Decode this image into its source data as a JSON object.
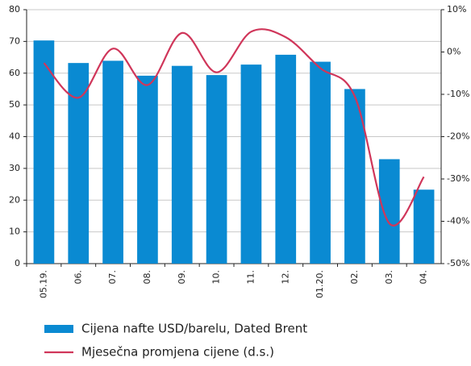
{
  "chart_data": {
    "type": "bar-line",
    "categories": [
      "05.19.",
      "06.",
      "07.",
      "08.",
      "09.",
      "10.",
      "11.",
      "12.",
      "01.20.",
      "02.",
      "03.",
      "04."
    ],
    "series": [
      {
        "name": "Cijena nafte USD/barelu,  Dated Brent",
        "type": "bar",
        "color": "#0a8ad2",
        "values": [
          70.3,
          63.2,
          63.9,
          59.2,
          62.3,
          59.4,
          62.7,
          65.8,
          63.6,
          55.0,
          32.9,
          23.3
        ]
      },
      {
        "name": "Mjesečna promjena cijene (d.s.)",
        "type": "line",
        "axis": "y2",
        "color": "#d0365a",
        "values": [
          -2.6,
          -10.8,
          0.8,
          -7.8,
          4.5,
          -4.8,
          4.8,
          3.5,
          -3.8,
          -10.5,
          -40.5,
          -29.5
        ]
      }
    ],
    "ylim": [
      0,
      80
    ],
    "yticks": [
      0,
      10,
      20,
      30,
      40,
      50,
      60,
      70,
      80
    ],
    "y2lim": [
      -50,
      10
    ],
    "y2ticks": [
      {
        "value": -50,
        "label": "-50%"
      },
      {
        "value": -40,
        "label": "-40%"
      },
      {
        "value": -30,
        "label": "-30%"
      },
      {
        "value": -20,
        "label": "-20%"
      },
      {
        "value": -10,
        "label": "-10%"
      },
      {
        "value": 0,
        "label": "0%"
      },
      {
        "value": 10,
        "label": "10%"
      }
    ],
    "grid": true,
    "legend": "bottom"
  }
}
